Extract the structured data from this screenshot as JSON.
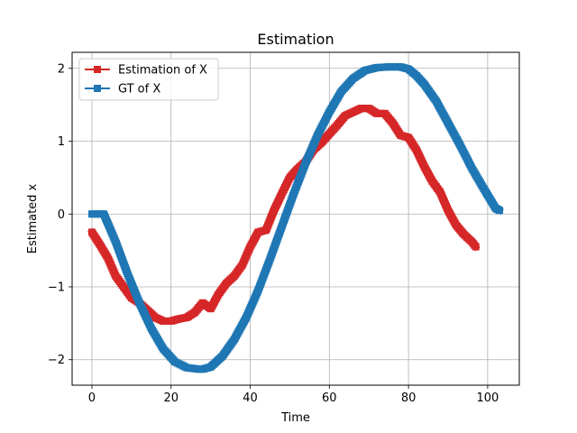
{
  "chart_data": {
    "type": "line",
    "title": "Estimation",
    "xlabel": "Time",
    "ylabel": "Estimated x",
    "xlim": [
      -5,
      108
    ],
    "ylim": [
      -2.35,
      2.22
    ],
    "xticks": [
      0,
      20,
      40,
      60,
      80,
      100
    ],
    "yticks": [
      -2,
      -1,
      0,
      1,
      2
    ],
    "xtick_labels": [
      "0",
      "20",
      "40",
      "60",
      "80",
      "100"
    ],
    "ytick_labels": [
      "−2",
      "−1",
      "0",
      "1",
      "2"
    ],
    "grid": true,
    "legend_position": "upper-left",
    "series": [
      {
        "name": "Estimation of X",
        "color": "#d62728",
        "marker": "square",
        "x": [
          0,
          2,
          4,
          6,
          8,
          10,
          12,
          14,
          16,
          18,
          20,
          22,
          24,
          26,
          28,
          30,
          32,
          34,
          36,
          38,
          40,
          42,
          44,
          46,
          48,
          50,
          52,
          54,
          56,
          58,
          60,
          62,
          64,
          66,
          68,
          70,
          72,
          74,
          76,
          78,
          80,
          82,
          84,
          86,
          88,
          90,
          92,
          94,
          96,
          97
        ],
        "values": [
          -0.25,
          -0.42,
          -0.6,
          -0.85,
          -1.0,
          -1.15,
          -1.22,
          -1.32,
          -1.42,
          -1.47,
          -1.47,
          -1.44,
          -1.42,
          -1.35,
          -1.22,
          -1.3,
          -1.1,
          -0.95,
          -0.85,
          -0.7,
          -0.45,
          -0.25,
          -0.22,
          0.05,
          0.28,
          0.5,
          0.62,
          0.72,
          0.88,
          0.98,
          1.1,
          1.22,
          1.35,
          1.4,
          1.45,
          1.45,
          1.38,
          1.38,
          1.25,
          1.08,
          1.05,
          0.88,
          0.65,
          0.45,
          0.3,
          0.05,
          -0.15,
          -0.28,
          -0.38,
          -0.45
        ]
      },
      {
        "name": "GT of X",
        "color": "#1f77b4",
        "marker": "square",
        "x": [
          0,
          2,
          3,
          6,
          9,
          12,
          15,
          18,
          21,
          24,
          27,
          28,
          30,
          33,
          36,
          39,
          42,
          45,
          48,
          51,
          54,
          57,
          60,
          63,
          66,
          69,
          72,
          75,
          78,
          80,
          82,
          84,
          87,
          90,
          93,
          96,
          99,
          102,
          103
        ],
        "values": [
          0,
          0,
          0,
          -0.38,
          -0.82,
          -1.22,
          -1.57,
          -1.85,
          -2.03,
          -2.11,
          -2.13,
          -2.13,
          -2.1,
          -1.95,
          -1.72,
          -1.42,
          -1.05,
          -0.62,
          -0.17,
          0.28,
          0.7,
          1.08,
          1.4,
          1.68,
          1.86,
          1.97,
          2.01,
          2.02,
          2.02,
          1.99,
          1.9,
          1.78,
          1.55,
          1.25,
          0.95,
          0.63,
          0.35,
          0.08,
          0.05
        ]
      }
    ]
  }
}
